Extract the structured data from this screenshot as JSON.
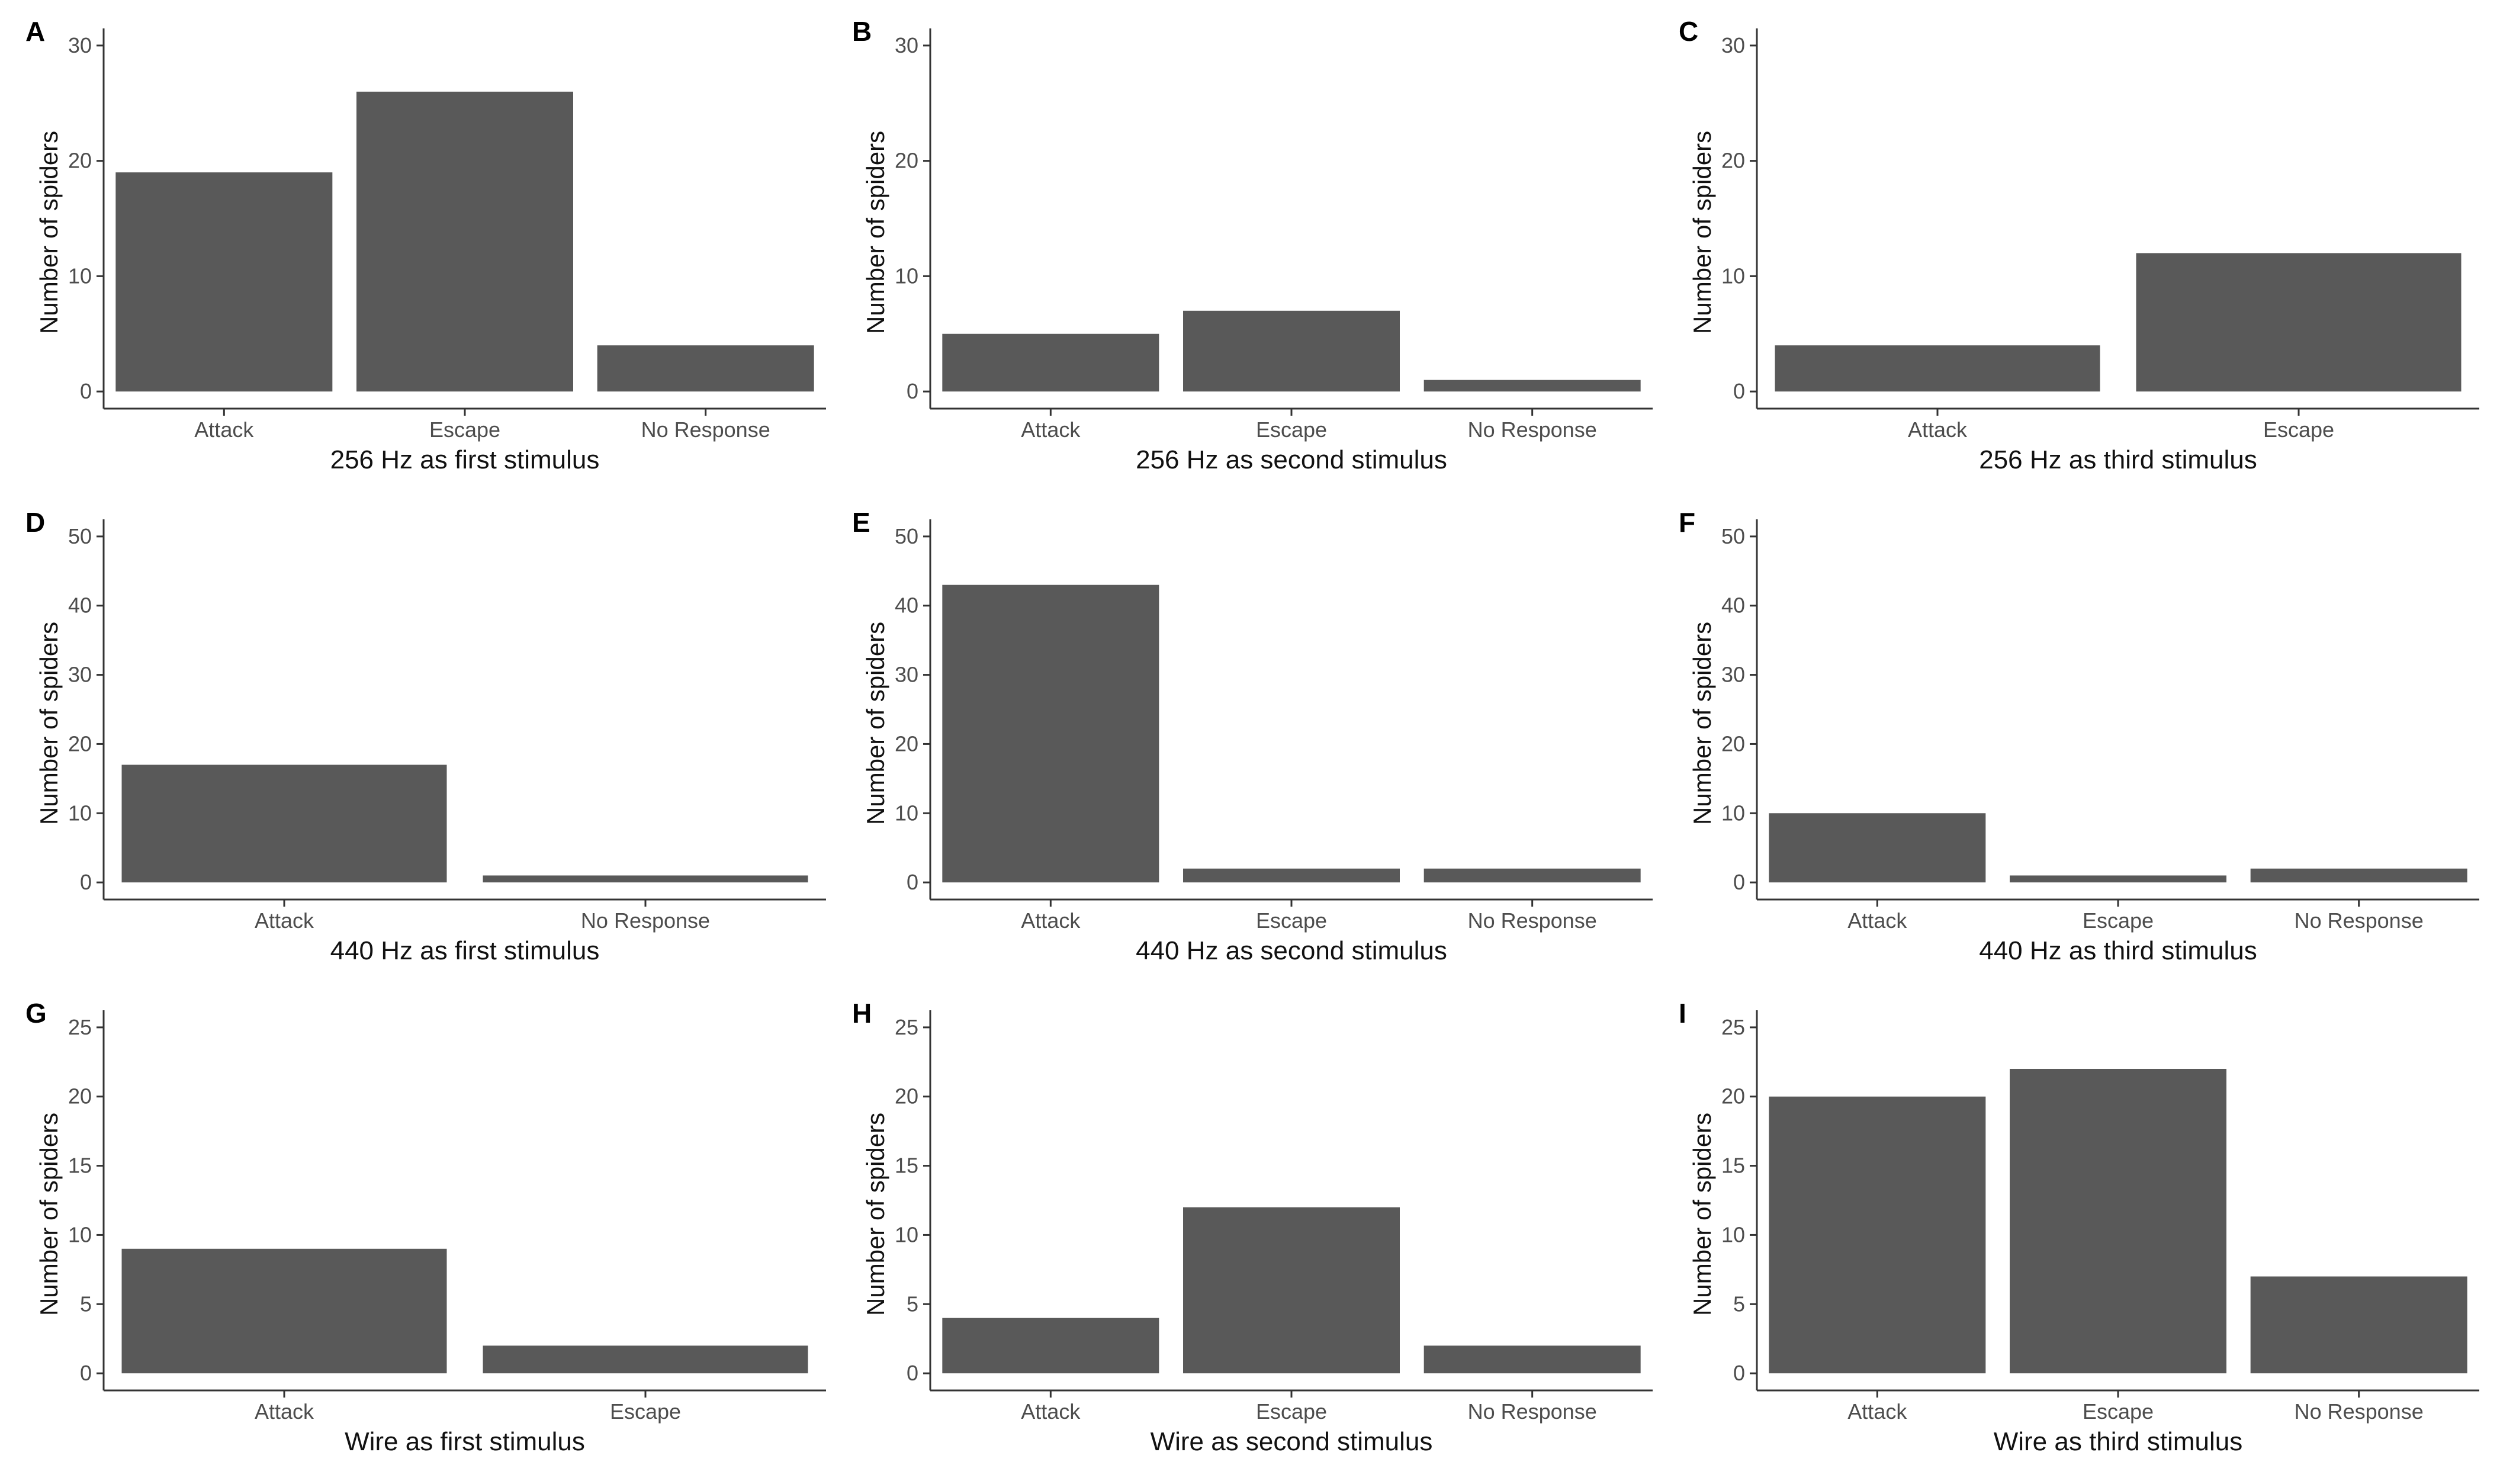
{
  "chart_data": [
    {
      "panel": "A",
      "type": "bar",
      "categories": [
        "Attack",
        "Escape",
        "No Response"
      ],
      "values": [
        19,
        26,
        4
      ],
      "ylim": [
        0,
        30
      ],
      "yticks": [
        0,
        10,
        20,
        30
      ],
      "ylabel": "Number of spiders",
      "xlabel": "256 Hz as first stimulus",
      "title": ""
    },
    {
      "panel": "B",
      "type": "bar",
      "categories": [
        "Attack",
        "Escape",
        "No Response"
      ],
      "values": [
        5,
        7,
        1
      ],
      "ylim": [
        0,
        30
      ],
      "yticks": [
        0,
        10,
        20,
        30
      ],
      "ylabel": "Number of spiders",
      "xlabel": "256 Hz as second stimulus",
      "title": ""
    },
    {
      "panel": "C",
      "type": "bar",
      "categories": [
        "Attack",
        "Escape"
      ],
      "values": [
        4,
        12
      ],
      "ylim": [
        0,
        30
      ],
      "yticks": [
        0,
        10,
        20,
        30
      ],
      "ylabel": "Number of spiders",
      "xlabel": "256 Hz as third stimulus",
      "title": ""
    },
    {
      "panel": "D",
      "type": "bar",
      "categories": [
        "Attack",
        "No Response"
      ],
      "values": [
        17,
        1
      ],
      "ylim": [
        0,
        50
      ],
      "yticks": [
        0,
        10,
        20,
        30,
        40,
        50
      ],
      "ylabel": "Number of spiders",
      "xlabel": "440 Hz as first stimulus",
      "title": ""
    },
    {
      "panel": "E",
      "type": "bar",
      "categories": [
        "Attack",
        "Escape",
        "No Response"
      ],
      "values": [
        43,
        2,
        2
      ],
      "ylim": [
        0,
        50
      ],
      "yticks": [
        0,
        10,
        20,
        30,
        40,
        50
      ],
      "ylabel": "Number of spiders",
      "xlabel": "440 Hz as second stimulus",
      "title": ""
    },
    {
      "panel": "F",
      "type": "bar",
      "categories": [
        "Attack",
        "Escape",
        "No Response"
      ],
      "values": [
        10,
        1,
        2
      ],
      "ylim": [
        0,
        50
      ],
      "yticks": [
        0,
        10,
        20,
        30,
        40,
        50
      ],
      "ylabel": "Number of spiders",
      "xlabel": "440 Hz as third stimulus",
      "title": ""
    },
    {
      "panel": "G",
      "type": "bar",
      "categories": [
        "Attack",
        "Escape"
      ],
      "values": [
        9,
        2
      ],
      "ylim": [
        0,
        25
      ],
      "yticks": [
        0,
        5,
        10,
        15,
        20,
        25
      ],
      "ylabel": "Number of spiders",
      "xlabel": "Wire as first stimulus",
      "title": ""
    },
    {
      "panel": "H",
      "type": "bar",
      "categories": [
        "Attack",
        "Escape",
        "No Response"
      ],
      "values": [
        4,
        12,
        2
      ],
      "ylim": [
        0,
        25
      ],
      "yticks": [
        0,
        5,
        10,
        15,
        20,
        25
      ],
      "ylabel": "Number of spiders",
      "xlabel": "Wire as second stimulus",
      "title": ""
    },
    {
      "panel": "I",
      "type": "bar",
      "categories": [
        "Attack",
        "Escape",
        "No Response"
      ],
      "values": [
        20,
        22,
        7
      ],
      "ylim": [
        0,
        25
      ],
      "yticks": [
        0,
        5,
        10,
        15,
        20,
        25
      ],
      "ylabel": "Number of spiders",
      "xlabel": "Wire as third stimulus",
      "title": ""
    }
  ],
  "colors": {
    "bar": "#595959",
    "axis": "#333333",
    "tick_text": "#4d4d4d"
  }
}
